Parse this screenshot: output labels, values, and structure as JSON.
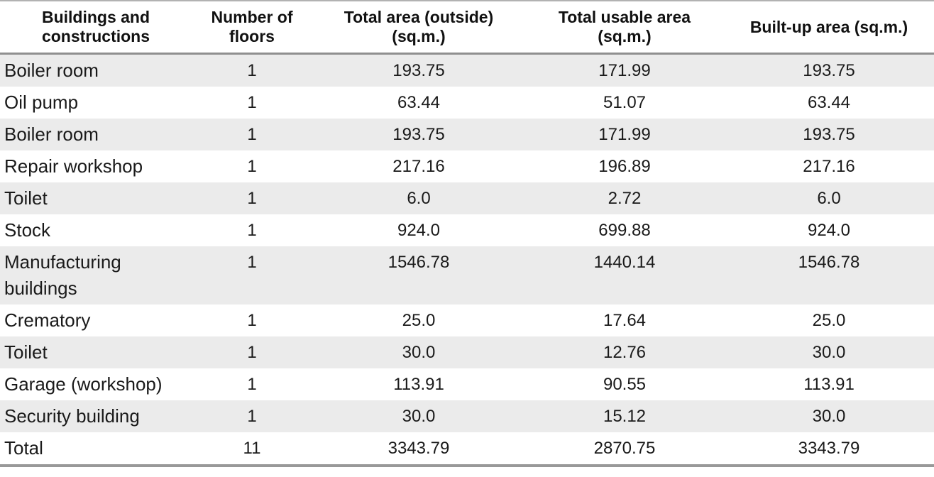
{
  "theme": {
    "row_alt_color": "#ebebeb",
    "text_color": "#1a1a1a",
    "header_text_color": "#111111",
    "rule_color": "#8f8f8f"
  },
  "table": {
    "columns": [
      {
        "label": "Buildings and\nconstructions"
      },
      {
        "label": "Number of\nfloors"
      },
      {
        "label": "Total area (outside)\n(sq.m.)"
      },
      {
        "label": "Total usable area\n(sq.m.)"
      },
      {
        "label": "Built-up area (sq.m.)"
      }
    ],
    "rows": [
      {
        "name": "Boiler room",
        "floors": "1",
        "total_area": "193.75",
        "usable_area": "171.99",
        "built_up": "193.75"
      },
      {
        "name": "Oil pump",
        "floors": "1",
        "total_area": "63.44",
        "usable_area": "51.07",
        "built_up": "63.44"
      },
      {
        "name": "Boiler room",
        "floors": "1",
        "total_area": "193.75",
        "usable_area": "171.99",
        "built_up": "193.75"
      },
      {
        "name": "Repair workshop",
        "floors": "1",
        "total_area": "217.16",
        "usable_area": "196.89",
        "built_up": "217.16"
      },
      {
        "name": "Toilet",
        "floors": "1",
        "total_area": "6.0",
        "usable_area": "2.72",
        "built_up": "6.0"
      },
      {
        "name": "Stock",
        "floors": "1",
        "total_area": "924.0",
        "usable_area": "699.88",
        "built_up": "924.0"
      },
      {
        "name": "Manufacturing buildings",
        "floors": "1",
        "total_area": "1546.78",
        "usable_area": "1440.14",
        "built_up": "1546.78"
      },
      {
        "name": "Crematory",
        "floors": "1",
        "total_area": "25.0",
        "usable_area": "17.64",
        "built_up": "25.0"
      },
      {
        "name": "Toilet",
        "floors": "1",
        "total_area": "30.0",
        "usable_area": "12.76",
        "built_up": "30.0"
      },
      {
        "name": "Garage (workshop)",
        "floors": "1",
        "total_area": "113.91",
        "usable_area": "90.55",
        "built_up": "113.91"
      },
      {
        "name": "Security building",
        "floors": "1",
        "total_area": "30.0",
        "usable_area": "15.12",
        "built_up": "30.0"
      },
      {
        "name": "Total",
        "floors": "11",
        "total_area": "3343.79",
        "usable_area": "2870.75",
        "built_up": "3343.79"
      }
    ]
  }
}
